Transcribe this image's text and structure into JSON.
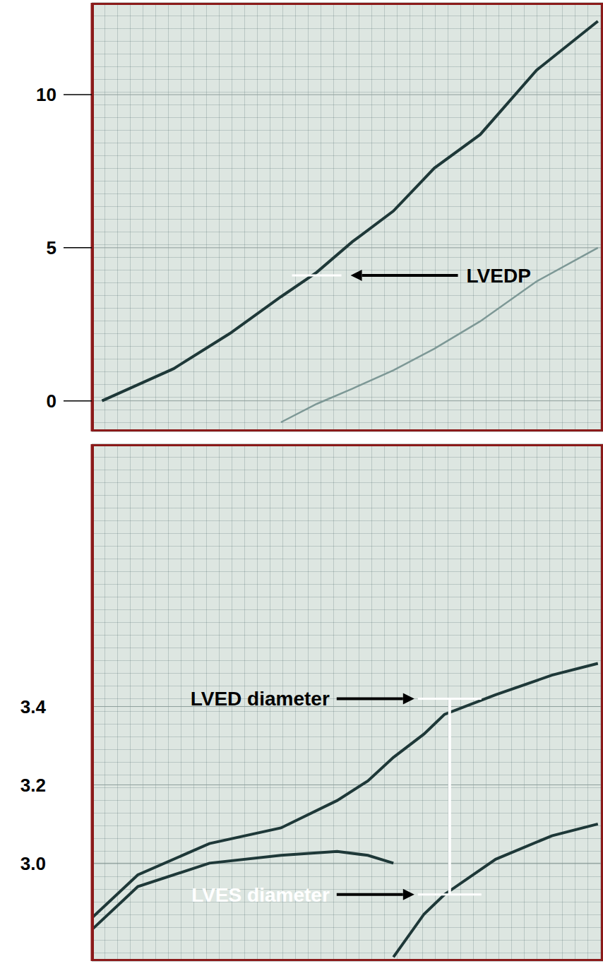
{
  "chart_data": [
    {
      "type": "line",
      "x": [
        2,
        16,
        27,
        37,
        44,
        51,
        59,
        67,
        76,
        87,
        99
      ],
      "series": [
        {
          "color": "#1e3838",
          "values": [
            0,
            1.05,
            2.2,
            3.4,
            4.2,
            5.2,
            6.2,
            7.6,
            8.7,
            10.8,
            12.4
          ]
        },
        {
          "color": "#7d9896",
          "values": [
            null,
            null,
            null,
            -0.7,
            -0.1,
            0.4,
            1.0,
            1.7,
            2.6,
            3.9,
            5.0
          ]
        }
      ],
      "xlim": [
        0,
        100
      ],
      "ylim": [
        -1,
        13
      ],
      "yticks": [
        0,
        5,
        10
      ],
      "tick_labels": "y",
      "grid": true,
      "annotations": [
        {
          "text": "LVEDP",
          "x": 44,
          "y": 4.1
        }
      ]
    },
    {
      "type": "line",
      "x": [
        0,
        9,
        23,
        37,
        48,
        54,
        59,
        65,
        69,
        79,
        90,
        99
      ],
      "series": [
        {
          "color": "#1e3838",
          "values": [
            2.86,
            2.97,
            3.05,
            3.09,
            3.16,
            3.21,
            3.27,
            3.33,
            3.38,
            3.43,
            3.48,
            3.51
          ]
        },
        {
          "color": "#1e3838",
          "values": [
            2.83,
            2.94,
            3.0,
            3.02,
            3.03,
            3.02,
            3.0,
            null,
            null,
            null,
            null,
            null
          ]
        },
        {
          "color": "#1e3838",
          "values": [
            null,
            null,
            null,
            null,
            null,
            null,
            2.76,
            2.87,
            2.92,
            3.01,
            3.07,
            3.1
          ]
        }
      ],
      "xlim": [
        0,
        100
      ],
      "ylim": [
        2.75,
        4.07
      ],
      "yticks": [
        {
          "value": 3,
          "label": "3.0"
        },
        3.2,
        3.4
      ],
      "tick_labels": "y",
      "grid": true,
      "annotations": [
        {
          "text": "LVED diameter",
          "x": 70,
          "y": 3.42
        },
        {
          "text": "LVES diameter",
          "x": 70,
          "y": 2.92
        }
      ]
    }
  ]
}
